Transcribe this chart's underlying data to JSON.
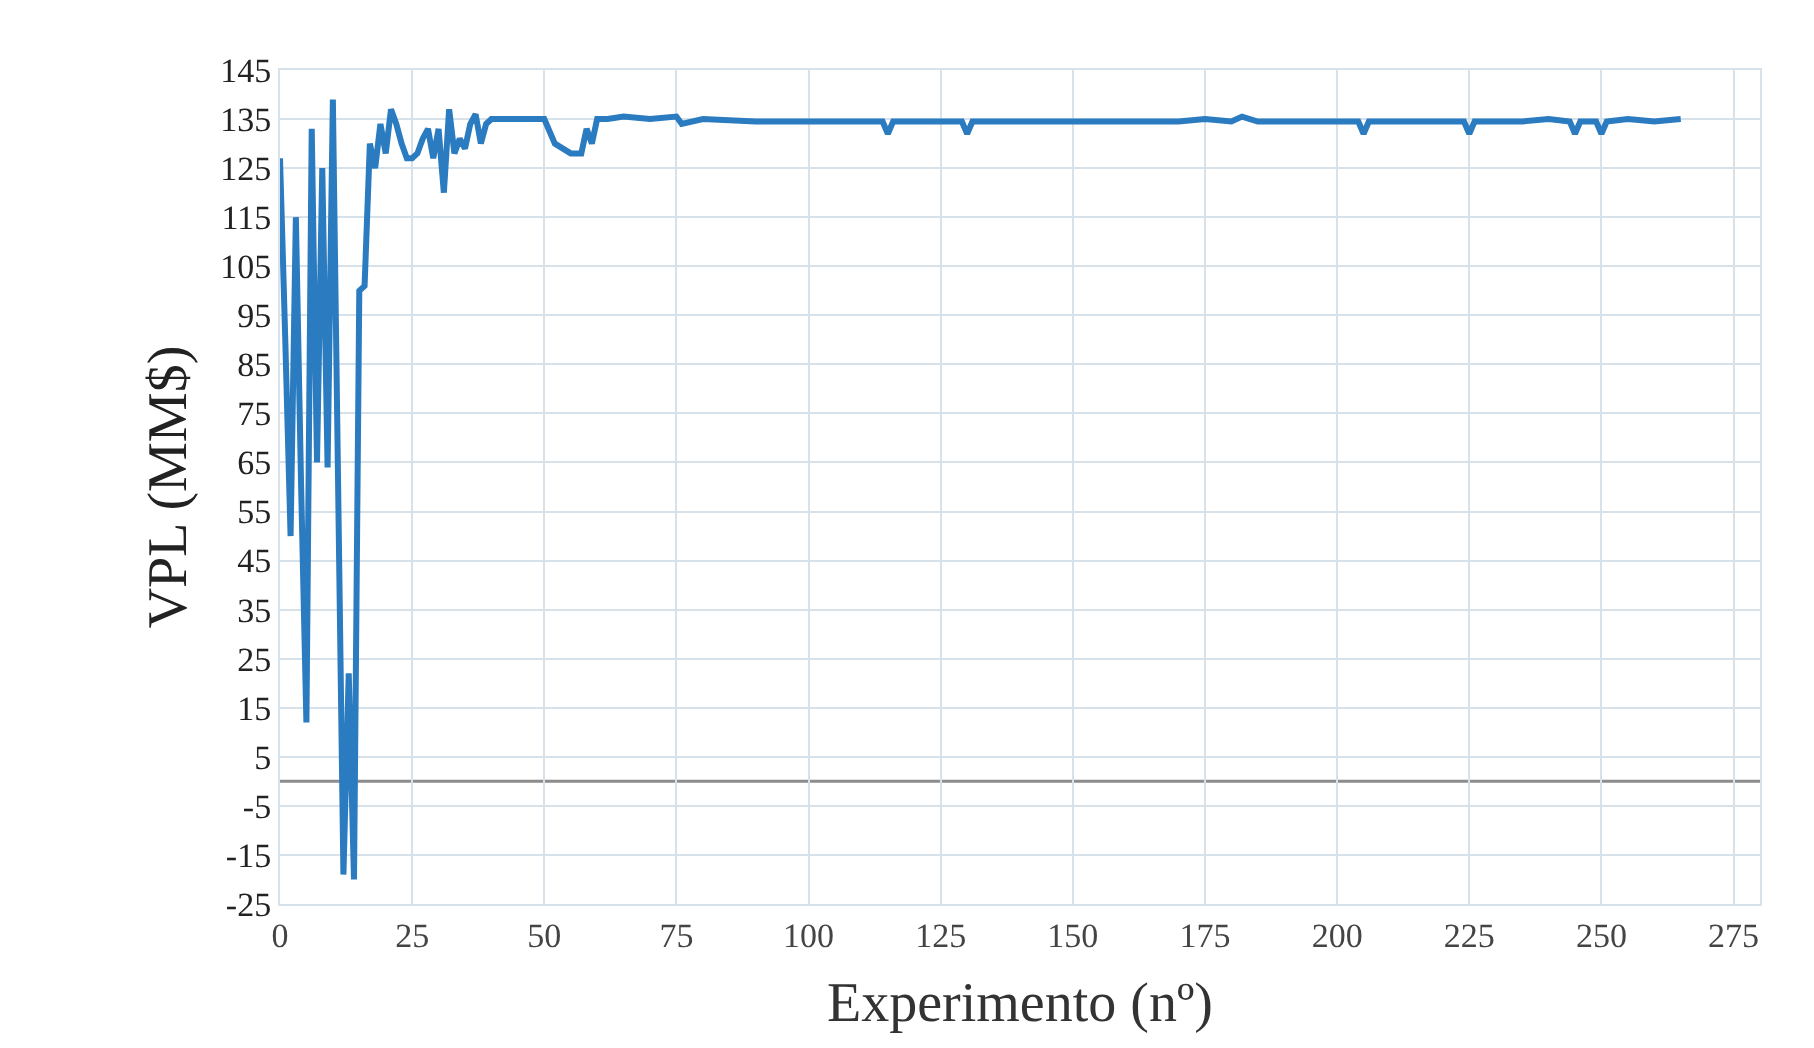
{
  "chart_data": {
    "type": "line",
    "xlabel": "Experimento (nº)",
    "ylabel": "VPL (MM$)",
    "series": [
      {
        "color": "#2a7bbf",
        "x": [
          0,
          1,
          2,
          3,
          4,
          5,
          6,
          7,
          8,
          9,
          10,
          11,
          12,
          13,
          14,
          15,
          16,
          17,
          18,
          19,
          20,
          21,
          22,
          23,
          24,
          25,
          26,
          27,
          28,
          29,
          30,
          31,
          32,
          33,
          34,
          35,
          36,
          37,
          38,
          39,
          40,
          45,
          50,
          52,
          55,
          57,
          58,
          59,
          60,
          62,
          65,
          70,
          75,
          76,
          80,
          90,
          100,
          110,
          114,
          115,
          116,
          125,
          129,
          130,
          131,
          140,
          150,
          160,
          170,
          175,
          180,
          182,
          185,
          190,
          200,
          204,
          205,
          206,
          215,
          224,
          225,
          226,
          235,
          240,
          244,
          245,
          246,
          249,
          250,
          251,
          255,
          260,
          265
        ],
        "values": [
          127,
          90,
          50,
          115,
          60,
          12,
          133,
          65,
          125,
          64,
          139,
          60,
          -19,
          22,
          -20,
          100,
          101,
          130,
          125,
          134,
          128,
          137,
          134,
          130,
          127,
          127,
          128,
          131,
          133,
          127,
          133,
          120,
          137,
          128,
          131,
          129,
          134,
          136,
          130,
          134,
          135,
          135,
          135,
          130,
          128,
          128,
          133,
          130,
          135,
          135,
          135.5,
          135,
          135.5,
          134,
          135,
          134.5,
          134.5,
          134.5,
          134.5,
          132,
          134.5,
          134.5,
          134.5,
          132,
          134.5,
          134.5,
          134.5,
          134.5,
          134.5,
          135,
          134.5,
          135.5,
          134.5,
          134.5,
          134.5,
          134.5,
          132,
          134.5,
          134.5,
          134.5,
          132,
          134.5,
          134.5,
          135,
          134.5,
          132,
          134.5,
          134.5,
          132,
          134.5,
          135,
          134.5,
          135
        ]
      }
    ],
    "xlim": [
      0,
      280
    ],
    "xticks": [
      0,
      25,
      50,
      75,
      100,
      125,
      150,
      175,
      200,
      225,
      250,
      275
    ],
    "ylim": [
      -25,
      145
    ],
    "yticks": [
      -25,
      -15,
      -5,
      5,
      15,
      25,
      35,
      45,
      55,
      65,
      75,
      85,
      95,
      105,
      115,
      125,
      135,
      145
    ],
    "ref_lines": [
      {
        "axis": "y",
        "value": 0,
        "color": "#8c8c8c"
      }
    ],
    "grid": true,
    "marker": "none",
    "line_style": "solid"
  }
}
